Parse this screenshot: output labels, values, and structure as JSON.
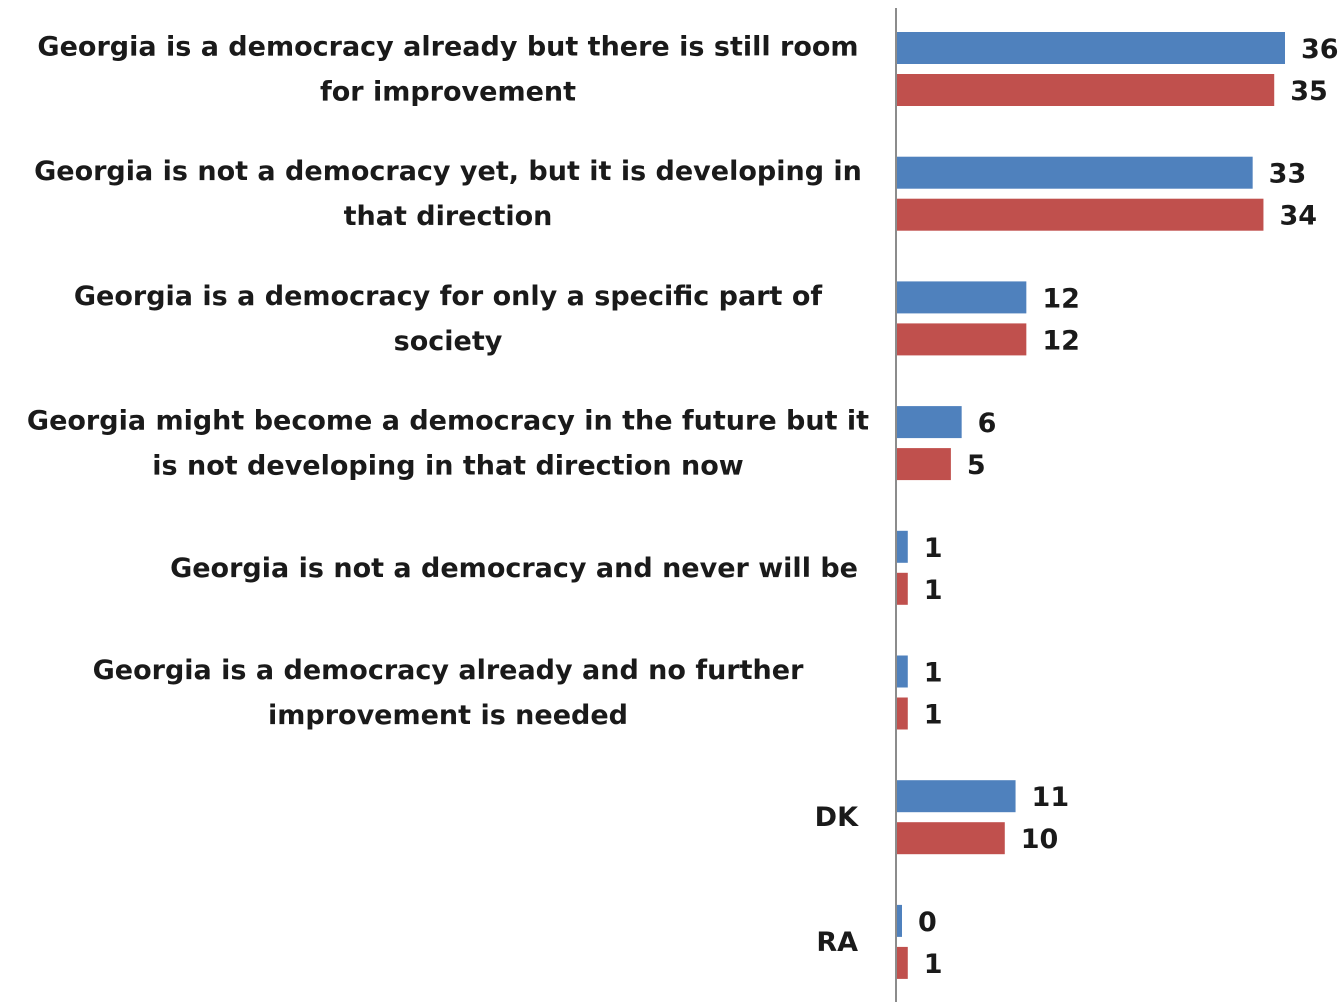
{
  "chart_data": {
    "type": "bar",
    "orientation": "horizontal",
    "categories": [
      [
        "Georgia is a democracy already but there is still room",
        "for improvement"
      ],
      [
        "Georgia is not a democracy yet, but it is developing in",
        "that direction"
      ],
      [
        "Georgia is a democracy for only a specific part of",
        "society"
      ],
      [
        "Georgia might become a democracy in the future but it",
        "is not developing in that direction now"
      ],
      [
        "Georgia is not a democracy and never will be"
      ],
      [
        "Georgia is a democracy already and no further",
        "improvement is needed"
      ],
      [
        "DK"
      ],
      [
        "RA"
      ]
    ],
    "series": [
      {
        "values": [
          36,
          33,
          12,
          6,
          1,
          1,
          11,
          0
        ],
        "color": "#4f81bd"
      },
      {
        "values": [
          35,
          34,
          12,
          5,
          1,
          1,
          10,
          1
        ],
        "color": "#c0504d"
      }
    ],
    "xlim": [
      0,
      36
    ],
    "grid": false,
    "legend": "none"
  }
}
